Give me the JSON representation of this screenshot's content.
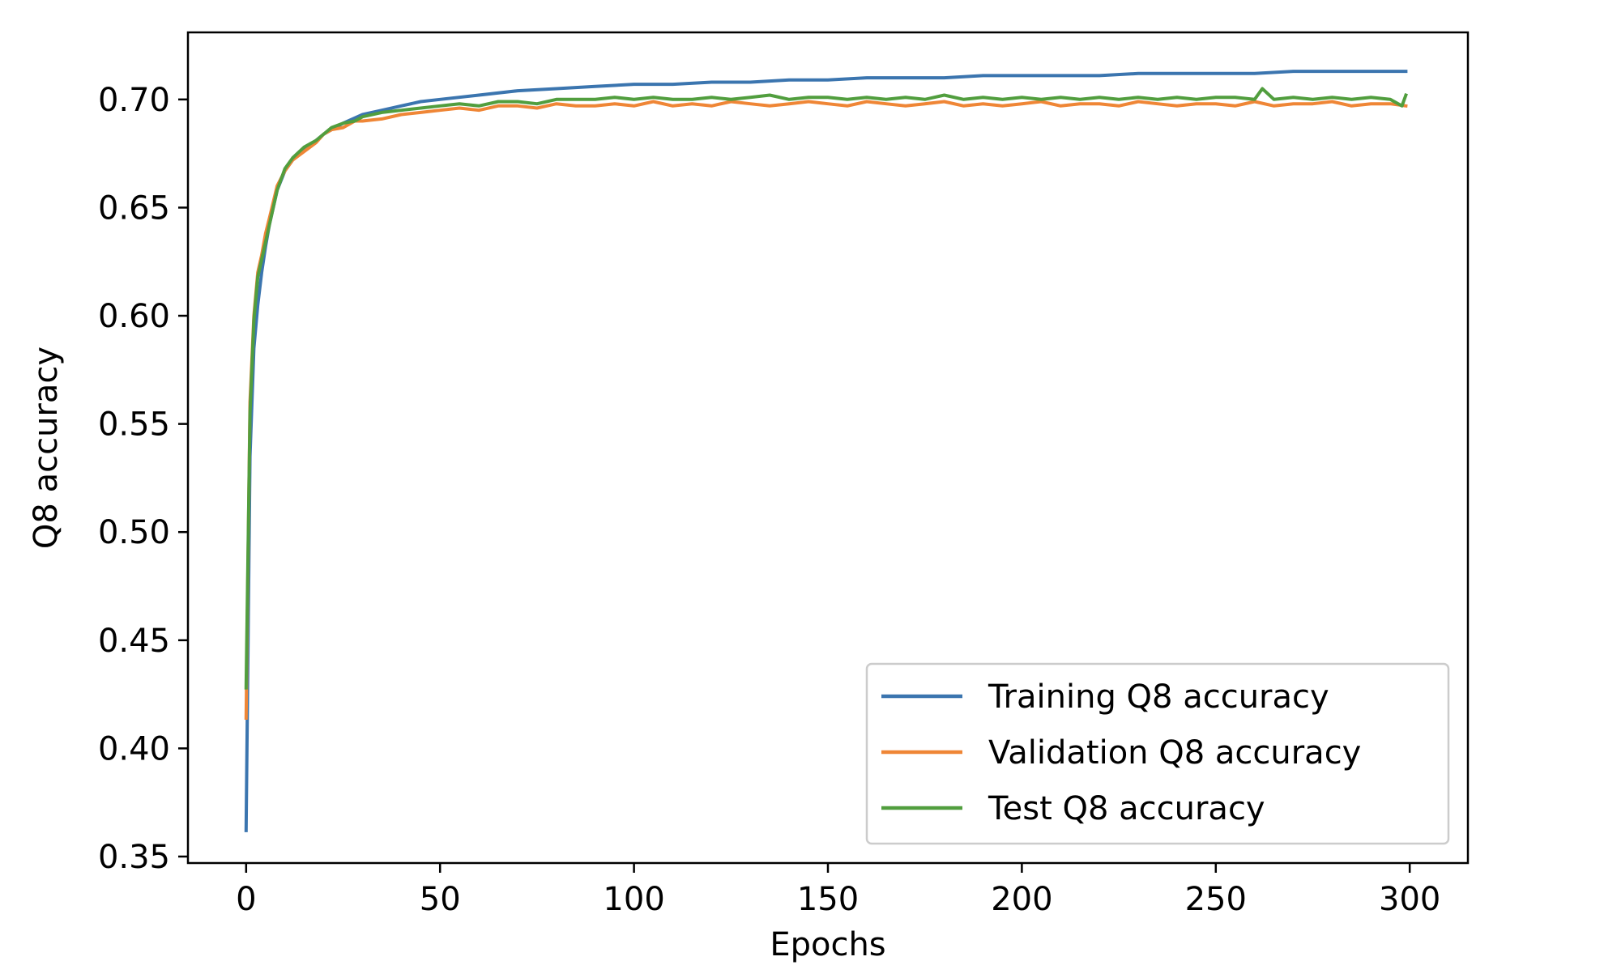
{
  "chart_data": {
    "type": "line",
    "xlabel": "Epochs",
    "ylabel": "Q8 accuracy",
    "xlim": [
      -15,
      315
    ],
    "ylim": [
      0.347,
      0.731
    ],
    "xticks": [
      {
        "value": 0,
        "label": "0"
      },
      {
        "value": 50,
        "label": "50"
      },
      {
        "value": 100,
        "label": "100"
      },
      {
        "value": 150,
        "label": "150"
      },
      {
        "value": 200,
        "label": "200"
      },
      {
        "value": 250,
        "label": "250"
      },
      {
        "value": 300,
        "label": "300"
      }
    ],
    "yticks": [
      {
        "value": 0.35,
        "label": "0.35"
      },
      {
        "value": 0.4,
        "label": "0.40"
      },
      {
        "value": 0.45,
        "label": "0.45"
      },
      {
        "value": 0.5,
        "label": "0.50"
      },
      {
        "value": 0.55,
        "label": "0.55"
      },
      {
        "value": 0.6,
        "label": "0.60"
      },
      {
        "value": 0.65,
        "label": "0.65"
      },
      {
        "value": 0.7,
        "label": "0.70"
      }
    ],
    "grid": false,
    "legend_position": "lower-right",
    "series": [
      {
        "name": "Training Q8 accuracy",
        "color": "#3b75af",
        "x": [
          0,
          1,
          2,
          3,
          4,
          5,
          6,
          8,
          10,
          12,
          15,
          18,
          20,
          25,
          30,
          35,
          40,
          45,
          50,
          60,
          70,
          80,
          90,
          100,
          110,
          120,
          130,
          140,
          150,
          160,
          170,
          180,
          190,
          200,
          210,
          220,
          230,
          240,
          250,
          260,
          270,
          280,
          290,
          299
        ],
        "y": [
          0.362,
          0.535,
          0.585,
          0.605,
          0.62,
          0.632,
          0.642,
          0.658,
          0.667,
          0.672,
          0.677,
          0.681,
          0.684,
          0.689,
          0.693,
          0.695,
          0.697,
          0.699,
          0.7,
          0.702,
          0.704,
          0.705,
          0.706,
          0.707,
          0.707,
          0.708,
          0.708,
          0.709,
          0.709,
          0.71,
          0.71,
          0.71,
          0.711,
          0.711,
          0.711,
          0.711,
          0.712,
          0.712,
          0.712,
          0.712,
          0.713,
          0.713,
          0.713,
          0.713
        ]
      },
      {
        "name": "Validation Q8 accuracy",
        "color": "#ef8636",
        "x": [
          0,
          1,
          2,
          3,
          4,
          5,
          6,
          8,
          10,
          12,
          15,
          18,
          20,
          22,
          25,
          28,
          30,
          35,
          40,
          45,
          50,
          55,
          60,
          65,
          70,
          75,
          80,
          85,
          90,
          95,
          100,
          105,
          110,
          115,
          120,
          125,
          130,
          135,
          140,
          145,
          150,
          155,
          160,
          165,
          170,
          175,
          180,
          185,
          190,
          195,
          200,
          205,
          210,
          215,
          220,
          225,
          230,
          235,
          240,
          245,
          250,
          255,
          260,
          265,
          270,
          275,
          280,
          285,
          290,
          295,
          299
        ],
        "y": [
          0.414,
          0.56,
          0.6,
          0.62,
          0.628,
          0.638,
          0.645,
          0.66,
          0.667,
          0.672,
          0.676,
          0.68,
          0.684,
          0.686,
          0.687,
          0.69,
          0.69,
          0.691,
          0.693,
          0.694,
          0.695,
          0.696,
          0.695,
          0.697,
          0.697,
          0.696,
          0.698,
          0.697,
          0.697,
          0.698,
          0.697,
          0.699,
          0.697,
          0.698,
          0.697,
          0.699,
          0.698,
          0.697,
          0.698,
          0.699,
          0.698,
          0.697,
          0.699,
          0.698,
          0.697,
          0.698,
          0.699,
          0.697,
          0.698,
          0.697,
          0.698,
          0.699,
          0.697,
          0.698,
          0.698,
          0.697,
          0.699,
          0.698,
          0.697,
          0.698,
          0.698,
          0.697,
          0.699,
          0.697,
          0.698,
          0.698,
          0.699,
          0.697,
          0.698,
          0.698,
          0.697
        ]
      },
      {
        "name": "Test Q8 accuracy",
        "color": "#519e3e",
        "x": [
          0,
          1,
          2,
          3,
          4,
          5,
          6,
          8,
          10,
          12,
          15,
          18,
          20,
          22,
          25,
          28,
          30,
          35,
          40,
          45,
          50,
          55,
          60,
          65,
          70,
          75,
          80,
          85,
          90,
          95,
          100,
          105,
          110,
          115,
          120,
          125,
          130,
          135,
          140,
          145,
          150,
          155,
          160,
          165,
          170,
          175,
          180,
          185,
          190,
          195,
          200,
          205,
          210,
          215,
          220,
          225,
          230,
          235,
          240,
          245,
          250,
          255,
          260,
          262,
          265,
          270,
          275,
          280,
          285,
          290,
          295,
          298,
          299
        ],
        "y": [
          0.428,
          0.555,
          0.598,
          0.618,
          0.626,
          0.634,
          0.642,
          0.658,
          0.668,
          0.673,
          0.678,
          0.681,
          0.684,
          0.687,
          0.689,
          0.69,
          0.692,
          0.694,
          0.695,
          0.696,
          0.697,
          0.698,
          0.697,
          0.699,
          0.699,
          0.698,
          0.7,
          0.7,
          0.7,
          0.701,
          0.7,
          0.701,
          0.7,
          0.7,
          0.701,
          0.7,
          0.701,
          0.702,
          0.7,
          0.701,
          0.701,
          0.7,
          0.701,
          0.7,
          0.701,
          0.7,
          0.702,
          0.7,
          0.701,
          0.7,
          0.701,
          0.7,
          0.701,
          0.7,
          0.701,
          0.7,
          0.701,
          0.7,
          0.701,
          0.7,
          0.701,
          0.701,
          0.7,
          0.705,
          0.7,
          0.701,
          0.7,
          0.701,
          0.7,
          0.701,
          0.7,
          0.697,
          0.702
        ]
      }
    ]
  }
}
